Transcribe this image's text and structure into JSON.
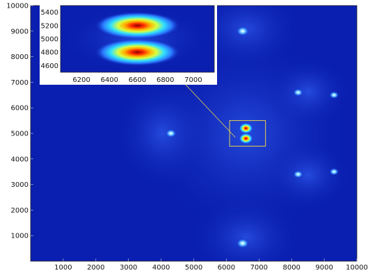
{
  "chart_data": [
    {
      "type": "heatmap",
      "title": "",
      "xlabel": "",
      "ylabel": "",
      "xlim": [
        0,
        10000
      ],
      "ylim": [
        0,
        10000
      ],
      "xticks": [
        1000,
        2000,
        3000,
        4000,
        5000,
        6000,
        7000,
        8000,
        9000,
        10000
      ],
      "yticks": [
        1000,
        2000,
        3000,
        4000,
        5000,
        6000,
        7000,
        8000,
        9000,
        10000
      ],
      "colormap": "jet",
      "background_color": "#0a1fb0",
      "grid": false,
      "legend": "none",
      "hotspots": [
        {
          "x": 6600,
          "y": 5200,
          "intensity": 1.0
        },
        {
          "x": 6600,
          "y": 4800,
          "intensity": 1.0
        },
        {
          "x": 6500,
          "y": 9000,
          "intensity": 0.55
        },
        {
          "x": 6500,
          "y": 700,
          "intensity": 0.55
        },
        {
          "x": 4300,
          "y": 5000,
          "intensity": 0.4
        },
        {
          "x": 8200,
          "y": 6600,
          "intensity": 0.3
        },
        {
          "x": 8200,
          "y": 3400,
          "intensity": 0.3
        },
        {
          "x": 9300,
          "y": 6500,
          "intensity": 0.25
        },
        {
          "x": 9300,
          "y": 3500,
          "intensity": 0.25
        }
      ],
      "zoom_box": {
        "xlim": [
          6100,
          7200
        ],
        "ylim": [
          4500,
          5500
        ],
        "color": "#e8d24a"
      }
    },
    {
      "type": "heatmap",
      "title": "",
      "xlabel": "",
      "ylabel": "",
      "xlim": [
        6050,
        7150
      ],
      "ylim": [
        4500,
        5500
      ],
      "xticks": [
        6200,
        6400,
        6600,
        6800,
        7000
      ],
      "yticks": [
        4600,
        4800,
        5000,
        5200,
        5400
      ],
      "colormap": "jet",
      "grid": false,
      "legend": "none",
      "hotspots": [
        {
          "x": 6600,
          "y": 5200,
          "intensity": 1.0
        },
        {
          "x": 6600,
          "y": 4800,
          "intensity": 1.0
        }
      ]
    }
  ]
}
